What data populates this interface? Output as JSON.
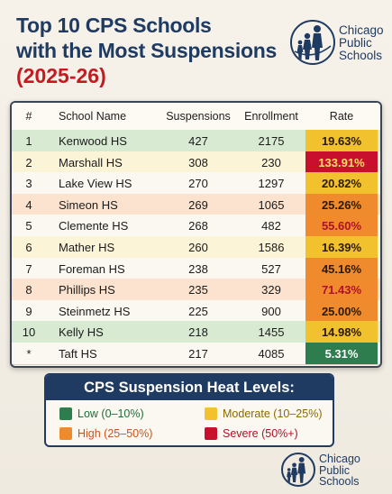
{
  "title": {
    "line1": "Top 10 CPS Schools",
    "line2": "with the Most Suspensions",
    "line3": "(2025-26)"
  },
  "logo": {
    "line1": "Chicago",
    "line2": "Public",
    "line3": "Schools",
    "icon": "family-silhouette-icon"
  },
  "colors": {
    "navy": "#1f3b62",
    "title_red": "#c41b21",
    "low": "#2e7d4f",
    "moderate": "#f2c12e",
    "high": "#ef8a2d",
    "severe": "#c8102e"
  },
  "chart_data": {
    "type": "table",
    "columns": [
      "#",
      "School Name",
      "Suspensions",
      "Enrollment",
      "Rate"
    ],
    "rows": [
      {
        "rank": "1",
        "school": "Kenwood HS",
        "suspensions": 427,
        "enrollment": 2175,
        "rate": "19.63%",
        "level": "moderate",
        "row_bg": "#d9ead3"
      },
      {
        "rank": "2",
        "school": "Marshall HS",
        "suspensions": 308,
        "enrollment": 230,
        "rate": "133.91%",
        "level": "severe",
        "row_bg": "#fcf4d6"
      },
      {
        "rank": "3",
        "school": "Lake View HS",
        "suspensions": 270,
        "enrollment": 1297,
        "rate": "20.82%",
        "level": "moderate",
        "row_bg": "#fbf8f1"
      },
      {
        "rank": "4",
        "school": "Simeon HS",
        "suspensions": 269,
        "enrollment": 1065,
        "rate": "25.26%",
        "level": "high",
        "row_bg": "#fbe3cf"
      },
      {
        "rank": "5",
        "school": "Clemente HS",
        "suspensions": 268,
        "enrollment": 482,
        "rate": "55.60%",
        "level": "severe",
        "row_bg": "#fbf8f1"
      },
      {
        "rank": "6",
        "school": "Mather HS",
        "suspensions": 260,
        "enrollment": 1586,
        "rate": "16.39%",
        "level": "moderate",
        "row_bg": "#fcf4d6"
      },
      {
        "rank": "7",
        "school": "Foreman HS",
        "suspensions": 238,
        "enrollment": 527,
        "rate": "45.16%",
        "level": "high",
        "row_bg": "#fbf8f1"
      },
      {
        "rank": "8",
        "school": "Phillips HS",
        "suspensions": 235,
        "enrollment": 329,
        "rate": "71.43%",
        "level": "severe",
        "row_bg": "#fbe3cf"
      },
      {
        "rank": "9",
        "school": "Steinmetz HS",
        "suspensions": 225,
        "enrollment": 900,
        "rate": "25.00%",
        "level": "high",
        "row_bg": "#fbf8f1"
      },
      {
        "rank": "10",
        "school": "Kelly HS",
        "suspensions": 218,
        "enrollment": 1455,
        "rate": "14.98%",
        "level": "moderate",
        "row_bg": "#d9ead3"
      },
      {
        "rank": "*",
        "school": "Taft HS",
        "suspensions": 217,
        "enrollment": 4085,
        "rate": "5.31%",
        "level": "low",
        "row_bg": "#fbf8f1"
      }
    ]
  },
  "legend": {
    "title": "CPS Suspension Heat Levels:",
    "items": [
      {
        "label": "Low (0–10%)",
        "level": "low",
        "text_color": "#1f6b3a"
      },
      {
        "label": "Moderate (10–25%)",
        "level": "moderate",
        "text_color": "#8a6a00"
      },
      {
        "label": "High (25–50%)",
        "level": "high",
        "text_color": "#c4561a"
      },
      {
        "label": "Severe (50%+)",
        "level": "severe",
        "text_color": "#b0102a"
      }
    ]
  },
  "footer_logo": {
    "line1": "Chicago",
    "line2": "Public",
    "line3": "Schools",
    "icon": "family-silhouette-icon"
  }
}
